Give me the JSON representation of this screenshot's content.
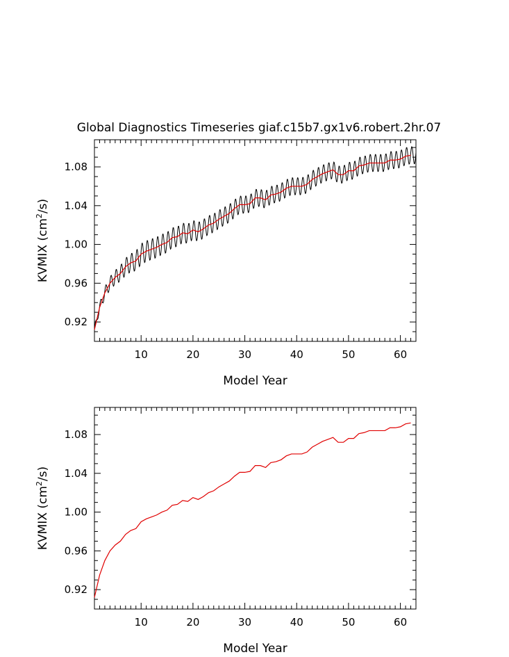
{
  "title": "Global Diagnostics Timeseries giaf.c15b7.gx1v6.robert.2hr.07",
  "colors": {
    "raw": "#000000",
    "smooth": "#e00000",
    "axes": "#000000"
  },
  "chart_data": [
    {
      "type": "line",
      "title": "Global Diagnostics Timeseries giaf.c15b7.gx1v6.robert.2hr.07",
      "xlabel": "Model Year",
      "ylabel_main": "KVMIX (cm",
      "ylabel_sup": "2",
      "ylabel_tail": "/s)",
      "xlim": [
        1,
        63
      ],
      "ylim": [
        0.9,
        1.108
      ],
      "xticks": [
        10,
        20,
        30,
        40,
        50,
        60
      ],
      "yticks": [
        0.92,
        0.96,
        1.0,
        1.04,
        1.08
      ],
      "ytick_labels": [
        "0.92",
        "0.96",
        "1.00",
        "1.04",
        "1.08"
      ],
      "series": [
        {
          "kind": "monthly",
          "seasonal_amplitude": [
            [
              1,
              0.003
            ],
            [
              3,
              0.006
            ],
            [
              10,
              0.011
            ],
            [
              30,
              0.009
            ],
            [
              63,
              0.009
            ]
          ]
        },
        {
          "kind": "annual",
          "x": [
            1,
            2,
            3,
            4,
            5,
            6,
            7,
            8,
            9,
            10,
            11,
            12,
            13,
            14,
            15,
            16,
            17,
            18,
            19,
            20,
            21,
            22,
            23,
            24,
            25,
            26,
            27,
            28,
            29,
            30,
            31,
            32,
            33,
            34,
            35,
            36,
            37,
            38,
            39,
            40,
            41,
            42,
            43,
            44,
            45,
            46,
            47,
            48,
            49,
            50,
            51,
            52,
            53,
            54,
            55,
            56,
            57,
            58,
            59,
            60,
            61,
            62
          ],
          "values": [
            0.912,
            0.935,
            0.95,
            0.96,
            0.966,
            0.97,
            0.977,
            0.981,
            0.983,
            0.99,
            0.993,
            0.995,
            0.997,
            1.0,
            1.002,
            1.007,
            1.008,
            1.012,
            1.011,
            1.015,
            1.013,
            1.016,
            1.02,
            1.022,
            1.026,
            1.029,
            1.032,
            1.037,
            1.041,
            1.041,
            1.042,
            1.048,
            1.048,
            1.046,
            1.051,
            1.052,
            1.054,
            1.058,
            1.06,
            1.06,
            1.06,
            1.062,
            1.067,
            1.07,
            1.073,
            1.075,
            1.077,
            1.072,
            1.072,
            1.076,
            1.076,
            1.081,
            1.082,
            1.084,
            1.084,
            1.084,
            1.084,
            1.087,
            1.087,
            1.088,
            1.091,
            1.092
          ]
        }
      ]
    },
    {
      "type": "line",
      "xlabel": "Model Year",
      "ylabel_main": "KVMIX (cm",
      "ylabel_sup": "2",
      "ylabel_tail": "/s)",
      "xlim": [
        1,
        63
      ],
      "ylim": [
        0.9,
        1.108
      ],
      "xticks": [
        10,
        20,
        30,
        40,
        50,
        60
      ],
      "yticks": [
        0.92,
        0.96,
        1.0,
        1.04,
        1.08
      ],
      "ytick_labels": [
        "0.92",
        "0.96",
        "1.00",
        "1.04",
        "1.08"
      ],
      "series": [
        {
          "kind": "annual",
          "ref": 0
        }
      ]
    }
  ]
}
